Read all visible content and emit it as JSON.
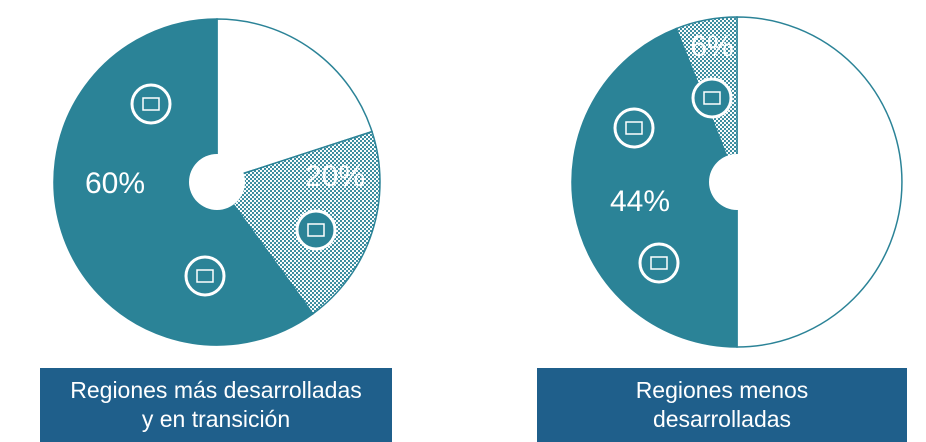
{
  "chart_data": [
    {
      "type": "pie",
      "title": [
        "Regiones más desarrolladas",
        "y en transición"
      ],
      "values": [
        20,
        20,
        60
      ],
      "value_labels": [
        null,
        "20%",
        "60%"
      ],
      "colors": [
        "#ffffff",
        "dots",
        "#2b8397"
      ]
    },
    {
      "type": "pie",
      "title": [
        "Regiones menos",
        "desarrolladas"
      ],
      "values": [
        50,
        44,
        6
      ],
      "value_labels": [
        null,
        "44%",
        "6%"
      ],
      "colors": [
        "#ffffff",
        "#2b8397",
        "dots"
      ]
    }
  ]
}
